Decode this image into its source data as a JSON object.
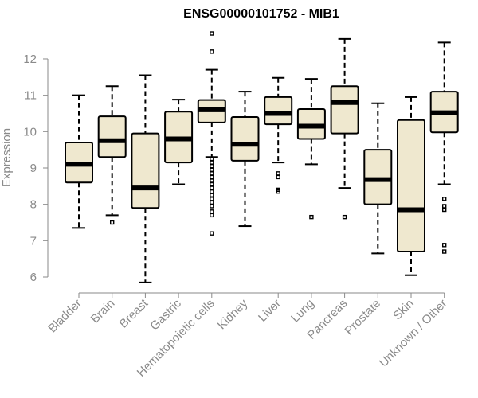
{
  "chart_data": {
    "type": "box",
    "title": "ENSG00000101752 - MIB1",
    "xlabel": "",
    "ylabel": "Expression",
    "ylim": [
      5.8,
      12.8
    ],
    "yticks": [
      6,
      7,
      8,
      9,
      10,
      11,
      12
    ],
    "grid": false,
    "colors": {
      "box_fill": "#efe8cf",
      "stroke": "#000000",
      "axis": "#8a8a8a"
    },
    "categories": [
      "Bladder",
      "Brain",
      "Breast",
      "Gastric",
      "Hematopoietic cells",
      "Kidney",
      "Liver",
      "Lung",
      "Pancreas",
      "Prostate",
      "Skin",
      "Unknown / Other"
    ],
    "series": [
      {
        "category": "Bladder",
        "whisker_low": 7.35,
        "q1": 8.6,
        "median": 9.1,
        "q3": 9.7,
        "whisker_high": 11.0,
        "outliers": []
      },
      {
        "category": "Brain",
        "whisker_low": 7.7,
        "q1": 9.3,
        "median": 9.75,
        "q3": 10.42,
        "whisker_high": 11.25,
        "outliers": [
          7.5
        ]
      },
      {
        "category": "Breast",
        "whisker_low": 5.85,
        "q1": 7.9,
        "median": 8.45,
        "q3": 9.95,
        "whisker_high": 11.55,
        "outliers": []
      },
      {
        "category": "Gastric",
        "whisker_low": 8.55,
        "q1": 9.15,
        "median": 9.8,
        "q3": 10.55,
        "whisker_high": 10.88,
        "outliers": []
      },
      {
        "category": "Hematopoietic cells",
        "whisker_low": 9.3,
        "q1": 10.25,
        "median": 10.6,
        "q3": 10.87,
        "whisker_high": 11.7,
        "outliers": [
          12.7,
          12.2,
          9.25,
          9.15,
          9.05,
          8.95,
          8.85,
          8.75,
          8.65,
          8.55,
          8.45,
          8.35,
          8.25,
          8.15,
          8.05,
          7.95,
          7.8,
          7.7,
          7.2
        ]
      },
      {
        "category": "Kidney",
        "whisker_low": 7.4,
        "q1": 9.2,
        "median": 9.65,
        "q3": 10.4,
        "whisker_high": 11.1,
        "outliers": []
      },
      {
        "category": "Liver",
        "whisker_low": 9.15,
        "q1": 10.2,
        "median": 10.5,
        "q3": 10.95,
        "whisker_high": 11.48,
        "outliers": [
          8.85,
          8.75,
          8.4,
          8.35
        ]
      },
      {
        "category": "Lung",
        "whisker_low": 9.1,
        "q1": 9.8,
        "median": 10.15,
        "q3": 10.62,
        "whisker_high": 11.45,
        "outliers": [
          7.65
        ]
      },
      {
        "category": "Pancreas",
        "whisker_low": 8.45,
        "q1": 9.95,
        "median": 10.8,
        "q3": 11.25,
        "whisker_high": 12.55,
        "outliers": [
          7.65
        ]
      },
      {
        "category": "Prostate",
        "whisker_low": 6.65,
        "q1": 8.0,
        "median": 8.68,
        "q3": 9.5,
        "whisker_high": 10.78,
        "outliers": []
      },
      {
        "category": "Skin",
        "whisker_low": 6.05,
        "q1": 6.7,
        "median": 7.85,
        "q3": 10.32,
        "whisker_high": 10.95,
        "outliers": []
      },
      {
        "category": "Unknown / Other",
        "whisker_low": 8.55,
        "q1": 9.98,
        "median": 10.52,
        "q3": 11.1,
        "whisker_high": 12.45,
        "outliers": [
          8.15,
          7.95,
          7.85,
          6.88,
          6.7
        ]
      }
    ]
  }
}
